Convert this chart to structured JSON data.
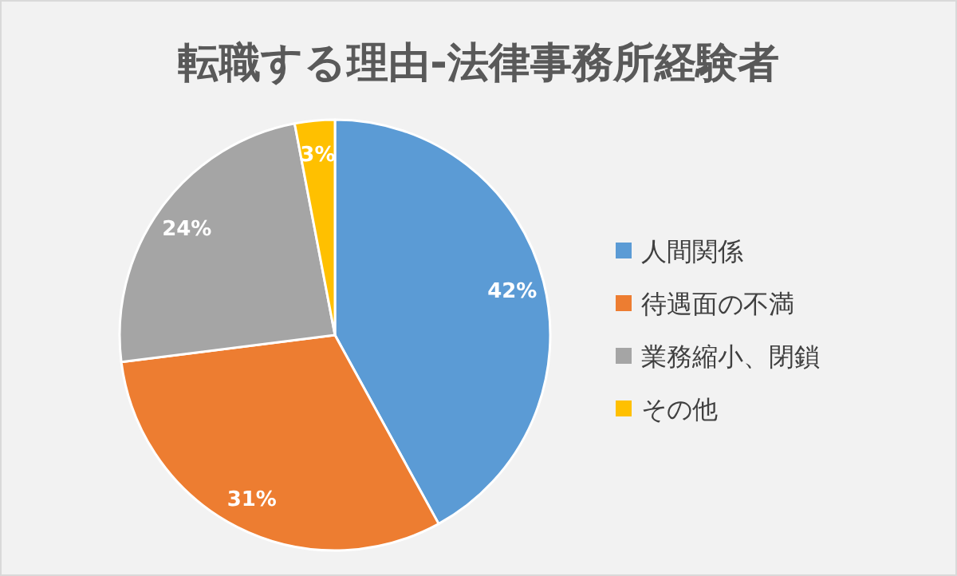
{
  "chart_data": {
    "type": "pie",
    "title": "転職する理由-法律事務所経験者",
    "categories": [
      "人間関係",
      "待遇面の不満",
      "業務縮小、閉鎖",
      "その他"
    ],
    "values": [
      42,
      31,
      24,
      3
    ],
    "colors": [
      "#5b9bd5",
      "#ed7d31",
      "#a5a5a5",
      "#ffc000"
    ],
    "value_labels": [
      "42%",
      "31%",
      "24%",
      "3%"
    ],
    "legend": "right"
  }
}
